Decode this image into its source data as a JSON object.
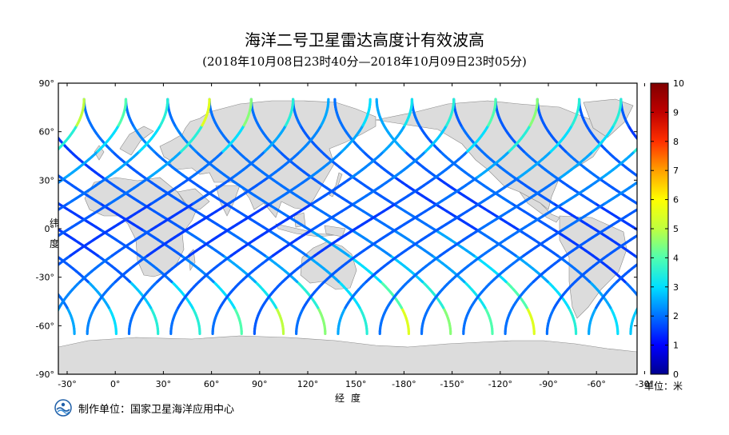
{
  "title": "海洋二号卫星雷达高度计有效波高",
  "subtitle": "(2018年10月08日23时40分—2018年10月09日23时05分)",
  "y_axis_label": [
    "纬",
    "度"
  ],
  "x_axis_label": "经度",
  "colorbar": {
    "unit_label": "单位：米",
    "min": 0,
    "max": 10,
    "ticks": [
      "0",
      "1",
      "2",
      "3",
      "4",
      "5",
      "6",
      "7",
      "8",
      "9",
      "10"
    ],
    "colors": [
      "#00008f",
      "#0000ff",
      "#0070ff",
      "#00dfff",
      "#50ffaf",
      "#bfff40",
      "#ffff00",
      "#ffa000",
      "#ff3000",
      "#bf0000",
      "#800000"
    ]
  },
  "map": {
    "lon_ticks": [
      "-30°",
      "0°",
      "30°",
      "60°",
      "90°",
      "120°",
      "150°",
      "-180°",
      "-150°",
      "-120°",
      "-90°",
      "-60°",
      "-30°"
    ],
    "lat_ticks": [
      "90°",
      "60°",
      "30°",
      "0°",
      "-30°",
      "-60°",
      "-90°"
    ],
    "ocean_color": "#ffffff",
    "land_color": "#dcdcdc"
  },
  "footer": {
    "producer": "制作单位：国家卫星海洋应用中心",
    "logo": "nsoas-logo-icon"
  },
  "chart_data": {
    "type": "heatmap",
    "title": "海洋二号卫星雷达高度计有效波高",
    "subtitle": "(2018年10月08日23时40分—2018年10月09日23时05分)",
    "xlabel": "经度",
    "ylabel": "纬度",
    "xlim": [
      -40,
      320
    ],
    "ylim": [
      -90,
      90
    ],
    "value_unit": "米",
    "value_range": [
      0,
      10
    ],
    "tracks": [
      {
        "lon0": 330,
        "dir": "asc",
        "swh": [
          2.5,
          2.0,
          1.5,
          1.5,
          1.8,
          2.0,
          2.0,
          1.8,
          2.0
        ]
      },
      {
        "lon0": 356,
        "dir": "asc",
        "swh": [
          3.0,
          2.5,
          1.8,
          1.5,
          1.5,
          1.8,
          2.0,
          2.0,
          1.8
        ]
      },
      {
        "lon0": 22,
        "dir": "asc",
        "swh": [
          3.5,
          2.8,
          1.8,
          1.5,
          1.5,
          1.8,
          2.0,
          1.8,
          1.8
        ]
      },
      {
        "lon0": 48,
        "dir": "asc",
        "swh": [
          3.5,
          3.0,
          2.0,
          1.8,
          1.5,
          1.8,
          2.0,
          1.8,
          1.8
        ]
      },
      {
        "lon0": 74,
        "dir": "asc",
        "swh": [
          4.0,
          3.0,
          2.2,
          1.8,
          1.5,
          1.8,
          1.8,
          1.8,
          1.8
        ]
      },
      {
        "lon0": 100,
        "dir": "asc",
        "swh": [
          5.0,
          3.2,
          2.5,
          2.0,
          1.8,
          1.8,
          1.5,
          1.5,
          1.8
        ]
      },
      {
        "lon0": 126,
        "dir": "asc",
        "swh": [
          4.5,
          3.5,
          2.5,
          2.0,
          1.8,
          1.8,
          1.8,
          2.0,
          2.0
        ]
      },
      {
        "lon0": 152,
        "dir": "asc",
        "swh": [
          3.5,
          3.0,
          2.5,
          2.0,
          1.8,
          1.8,
          2.0,
          2.2,
          2.0
        ]
      },
      {
        "lon0": 178,
        "dir": "asc",
        "swh": [
          5.5,
          4.0,
          3.0,
          2.5,
          2.0,
          2.0,
          2.0,
          2.2,
          2.0
        ]
      },
      {
        "lon0": 204,
        "dir": "asc",
        "swh": [
          4.5,
          3.5,
          2.8,
          2.2,
          2.0,
          2.0,
          2.0,
          2.0,
          2.0
        ]
      },
      {
        "lon0": 230,
        "dir": "asc",
        "swh": [
          4.0,
          3.2,
          2.5,
          2.2,
          2.0,
          1.8,
          1.8,
          2.0,
          2.0
        ]
      },
      {
        "lon0": 256,
        "dir": "asc",
        "swh": [
          5.5,
          4.0,
          3.0,
          2.5,
          2.0,
          1.8,
          1.8,
          1.8,
          2.0
        ]
      },
      {
        "lon0": 282,
        "dir": "asc",
        "swh": [
          3.5,
          3.0,
          2.5,
          2.0,
          1.5,
          1.5,
          1.8,
          2.0,
          2.0
        ]
      },
      {
        "lon0": 308,
        "dir": "asc",
        "swh": [
          3.0,
          2.5,
          2.0,
          1.8,
          1.5,
          1.5,
          1.8,
          2.5,
          2.5
        ]
      },
      {
        "lon0": 338,
        "dir": "desc",
        "swh": [
          2.2,
          2.0,
          1.8,
          1.5,
          1.5,
          1.8,
          2.0,
          2.2,
          2.5
        ]
      },
      {
        "lon0": 4,
        "dir": "desc",
        "swh": [
          2.0,
          2.0,
          1.8,
          1.5,
          1.5,
          2.0,
          2.2,
          2.5,
          3.0
        ]
      },
      {
        "lon0": 30,
        "dir": "desc",
        "swh": [
          2.0,
          1.8,
          1.8,
          1.5,
          1.5,
          1.8,
          2.2,
          2.5,
          3.2
        ]
      },
      {
        "lon0": 56,
        "dir": "desc",
        "swh": [
          2.0,
          1.8,
          1.8,
          1.5,
          1.8,
          2.0,
          2.2,
          2.8,
          3.5
        ]
      },
      {
        "lon0": 82,
        "dir": "desc",
        "swh": [
          1.8,
          1.8,
          1.8,
          1.5,
          1.5,
          1.8,
          2.0,
          3.0,
          4.0
        ]
      },
      {
        "lon0": 108,
        "dir": "desc",
        "swh": [
          2.0,
          1.8,
          1.8,
          1.8,
          1.8,
          2.0,
          2.5,
          3.5,
          4.5
        ]
      },
      {
        "lon0": 134,
        "dir": "desc",
        "swh": [
          2.5,
          2.0,
          1.8,
          1.8,
          1.8,
          2.0,
          2.5,
          3.0,
          3.5
        ]
      },
      {
        "lon0": 160,
        "dir": "desc",
        "swh": [
          2.0,
          2.0,
          2.0,
          1.8,
          2.0,
          2.0,
          2.5,
          3.0,
          3.5
        ]
      },
      {
        "lon0": 186,
        "dir": "desc",
        "swh": [
          2.0,
          2.0,
          2.0,
          2.0,
          2.0,
          2.2,
          2.5,
          3.5,
          5.0
        ]
      },
      {
        "lon0": 212,
        "dir": "desc",
        "swh": [
          2.0,
          2.0,
          2.0,
          1.8,
          2.0,
          2.2,
          2.5,
          3.0,
          4.0
        ]
      },
      {
        "lon0": 238,
        "dir": "desc",
        "swh": [
          2.0,
          2.0,
          1.8,
          1.8,
          1.8,
          2.0,
          2.5,
          3.0,
          3.5
        ]
      },
      {
        "lon0": 264,
        "dir": "desc",
        "swh": [
          2.0,
          1.8,
          1.8,
          1.8,
          1.8,
          2.0,
          2.5,
          3.5,
          5.5
        ]
      },
      {
        "lon0": 290,
        "dir": "desc",
        "swh": [
          2.5,
          2.0,
          1.8,
          1.5,
          1.5,
          1.8,
          2.0,
          3.0,
          4.5
        ]
      },
      {
        "lon0": 316,
        "dir": "desc",
        "swh": [
          2.8,
          2.2,
          2.0,
          1.8,
          1.5,
          1.8,
          2.0,
          2.5,
          3.5
        ]
      }
    ]
  }
}
